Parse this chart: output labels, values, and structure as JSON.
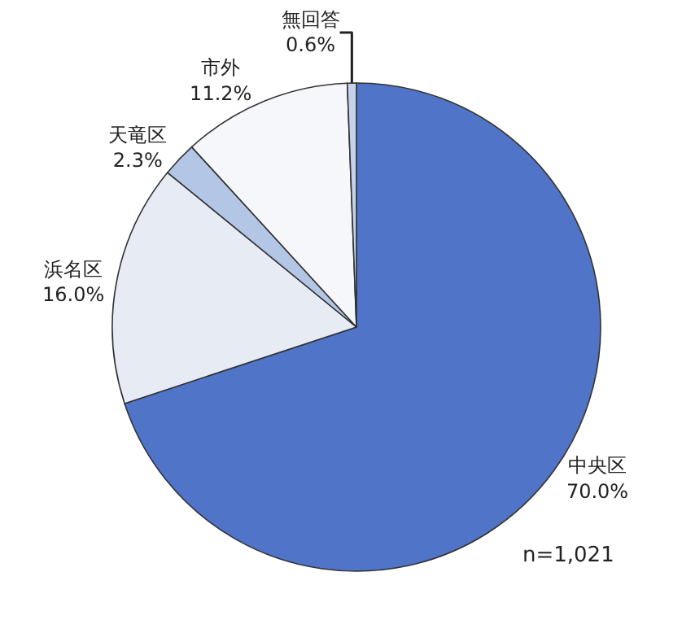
{
  "chart_data": {
    "type": "pie",
    "categories": [
      "中央区",
      "浜名区",
      "天竜区",
      "市外",
      "無回答"
    ],
    "values": [
      70.0,
      16.0,
      2.3,
      11.2,
      0.6
    ],
    "value_labels": [
      "70.0%",
      "16.0%",
      "2.3%",
      "11.2%",
      "0.6%"
    ],
    "colors": [
      "#4f74c8",
      "#e6ebf4",
      "#b4c6e6",
      "#f5f7fb",
      "#c6d2ea"
    ],
    "annotations": [
      "n=1,021"
    ],
    "legend": false
  }
}
